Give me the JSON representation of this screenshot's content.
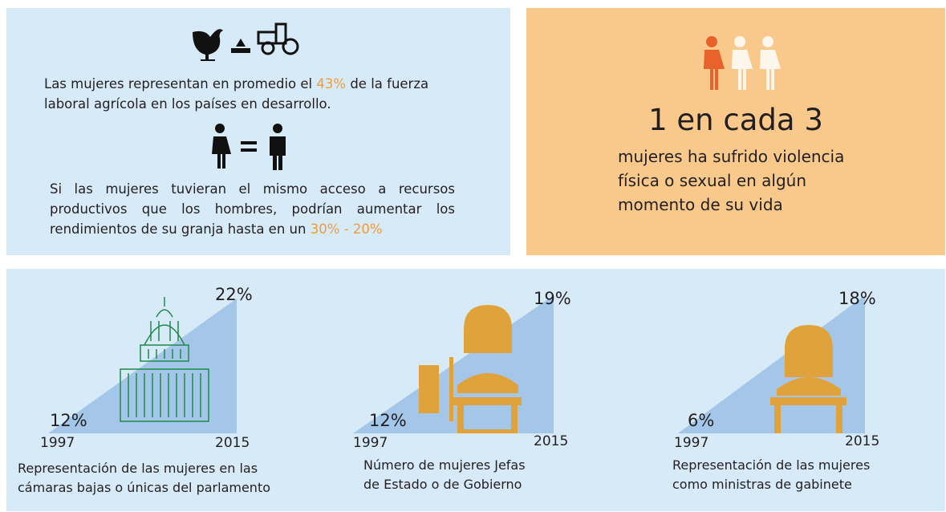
{
  "agriculture": {
    "labor": {
      "before": "Las mujeres representan en promedio el ",
      "highlight": "43%",
      "after": " de la fuerza laboral agrícola en los países en desarrollo."
    },
    "yield": {
      "before": "Si las mujeres tuvieran el mismo acceso a recursos productivos que los hombres, podrían aumentar los rendimientos de su granja hasta en un ",
      "highlight": "30% - 20%"
    }
  },
  "violence": {
    "headline": "1 en cada 3",
    "text": "mujeres ha sufrido violencia física o sexual en algún momento de su vida"
  },
  "stats": [
    {
      "start_value": "12%",
      "end_value": "22%",
      "start_year": 1997,
      "end_year": 2015,
      "caption": [
        "Representación de las mujeres en las",
        "cámaras bajas o únicas del parlamento"
      ]
    },
    {
      "start_value": "12%",
      "end_value": "19%",
      "start_year": 1997,
      "end_year": 2015,
      "caption": [
        "Número de mujeres Jefas",
        "de Estado o de Gobierno"
      ]
    },
    {
      "start_value": "6%",
      "end_value": "18%",
      "start_year": 1997,
      "end_year": 2015,
      "caption": [
        "Representación de las mujeres",
        "como ministras de gabinete"
      ]
    }
  ]
}
